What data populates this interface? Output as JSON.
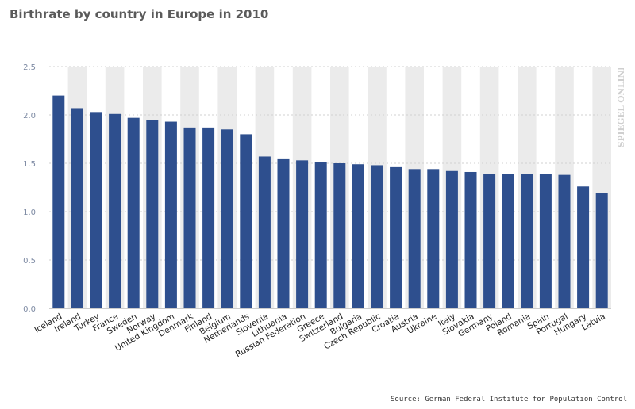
{
  "chart_data": {
    "type": "bar",
    "title": "Birthrate by country in Europe in 2010",
    "xlabel": "",
    "ylabel": "",
    "ylim": [
      0,
      2.5
    ],
    "yticks": [
      "0.0",
      "0.5",
      "1.0",
      "1.5",
      "2.0",
      "2.5"
    ],
    "grid": true,
    "bar_color": "#2e4f8e",
    "band_color": "#ebebeb",
    "categories": [
      "Iceland",
      "Ireland",
      "Turkey",
      "France",
      "Sweden",
      "Norway",
      "United Kingdom",
      "Denmark",
      "Finland",
      "Belgium",
      "Netherlands",
      "Slovenia",
      "Lithuania",
      "Russian Federation",
      "Greece",
      "Switzerland",
      "Bulgaria",
      "Czech Republic",
      "Croatia",
      "Austria",
      "Ukraine",
      "Italy",
      "Slovakia",
      "Germany",
      "Poland",
      "Romania",
      "Spain",
      "Portugal",
      "Hungary",
      "Latvia"
    ],
    "values": [
      2.2,
      2.07,
      2.03,
      2.01,
      1.97,
      1.95,
      1.93,
      1.87,
      1.87,
      1.85,
      1.8,
      1.57,
      1.55,
      1.53,
      1.51,
      1.5,
      1.49,
      1.48,
      1.46,
      1.44,
      1.44,
      1.42,
      1.41,
      1.39,
      1.39,
      1.39,
      1.39,
      1.38,
      1.26,
      1.19
    ]
  },
  "source": "Source: German Federal Institute for Population Control",
  "brand": {
    "logo_text": "SPIEGEL ONLINE",
    "color": "#cfcfcf"
  }
}
